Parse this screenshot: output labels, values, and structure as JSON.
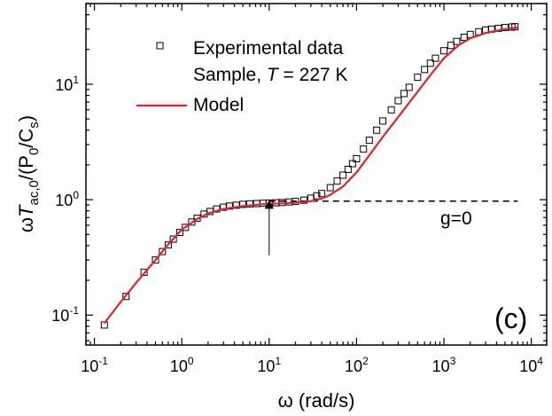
{
  "chart_data": {
    "type": "line",
    "xscale": "log",
    "yscale": "log",
    "xlim": [
      0.08,
      15000
    ],
    "ylim": [
      0.055,
      50
    ],
    "xticks": [
      {
        "value": 0.1,
        "base": "10",
        "exp": "-1"
      },
      {
        "value": 1,
        "base": "10",
        "exp": "0"
      },
      {
        "value": 10,
        "base": "10",
        "exp": "1"
      },
      {
        "value": 100,
        "base": "10",
        "exp": "2"
      },
      {
        "value": 1000,
        "base": "10",
        "exp": "3"
      },
      {
        "value": 10000,
        "base": "10",
        "exp": "4"
      }
    ],
    "yticks": [
      {
        "value": 0.1,
        "base": "10",
        "exp": "-1"
      },
      {
        "value": 1,
        "base": "10",
        "exp": "0"
      },
      {
        "value": 10,
        "base": "10",
        "exp": "1"
      }
    ],
    "xlabel": {
      "symbol": "ω",
      "rest": " (rad/s)"
    },
    "ylabel": {
      "prefix": "ω",
      "T": "T",
      "sub1": "ac,0",
      "mid": "/(P",
      "sub2": "0",
      "mid2": "/C",
      "sub3": "s",
      "end": ")"
    },
    "panel_label": "(c)",
    "grid": false,
    "legend": {
      "position": "top-left",
      "entries": [
        {
          "marker": "square-open",
          "text": "Experimental data"
        },
        {
          "marker": "none",
          "text_pre": "Sample, ",
          "text_italic": "T",
          "text_post": " = 227 K"
        },
        {
          "marker": "line",
          "color": "#e8202a",
          "text": "Model"
        }
      ]
    },
    "annotations": {
      "baseline_label": "g=0",
      "baseline": {
        "x": [
          10,
          7000
        ],
        "y": 0.97
      },
      "arrow": {
        "x": 10,
        "y_from": 0.33,
        "y_to": 0.91
      }
    },
    "series": [
      {
        "name": "Experimental data",
        "style": "markers",
        "x": [
          0.13,
          0.23,
          0.37,
          0.5,
          0.6,
          0.7,
          0.8,
          0.95,
          1.1,
          1.3,
          1.5,
          1.8,
          2.1,
          2.5,
          3.0,
          3.5,
          4.2,
          5.0,
          6.0,
          7.2,
          8.5,
          10,
          12,
          14,
          17,
          20,
          25,
          30,
          35,
          40,
          50,
          60,
          70,
          80,
          90,
          100,
          120,
          140,
          170,
          200,
          250,
          300,
          350,
          400,
          500,
          600,
          700,
          800,
          1000,
          1200,
          1400,
          1700,
          2000,
          2500,
          3000,
          3500,
          4200,
          5000,
          6000,
          6500
        ],
        "y": [
          0.082,
          0.145,
          0.235,
          0.3,
          0.355,
          0.405,
          0.455,
          0.52,
          0.575,
          0.64,
          0.69,
          0.75,
          0.79,
          0.83,
          0.86,
          0.88,
          0.895,
          0.91,
          0.92,
          0.925,
          0.93,
          0.935,
          0.94,
          0.945,
          0.955,
          0.965,
          0.99,
          1.03,
          1.08,
          1.13,
          1.27,
          1.45,
          1.63,
          1.83,
          2.05,
          2.26,
          2.75,
          3.27,
          4.0,
          4.8,
          6.0,
          7.2,
          8.3,
          9.4,
          11.5,
          13.4,
          15.2,
          16.8,
          19.5,
          21.7,
          23.5,
          25.5,
          27.0,
          28.5,
          29.5,
          30.0,
          30.5,
          31.0,
          31.3,
          31.5
        ]
      },
      {
        "name": "Model",
        "style": "line",
        "color": "#e8202a",
        "x": [
          0.13,
          0.2,
          0.3,
          0.5,
          0.7,
          1,
          1.5,
          2,
          3,
          5,
          8,
          10,
          15,
          20,
          30,
          40,
          50,
          70,
          100,
          150,
          200,
          300,
          500,
          700,
          1000,
          1500,
          2000,
          3000,
          5000,
          7000
        ],
        "y": [
          0.085,
          0.13,
          0.19,
          0.3,
          0.41,
          0.55,
          0.68,
          0.76,
          0.83,
          0.88,
          0.91,
          0.92,
          0.93,
          0.94,
          0.97,
          1.02,
          1.1,
          1.3,
          1.72,
          2.6,
          3.5,
          5.2,
          8.6,
          12.0,
          16.8,
          22.0,
          25.0,
          27.8,
          30.0,
          31.0
        ]
      }
    ]
  }
}
